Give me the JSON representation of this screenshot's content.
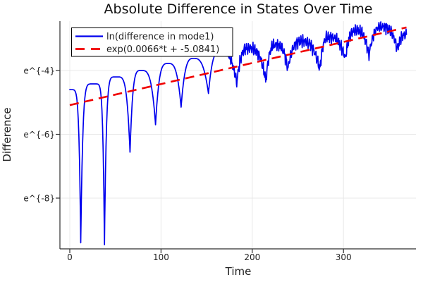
{
  "colors": {
    "background": "#ffffff",
    "grid": "#e8e8e8",
    "axis": "#2f2f2f",
    "tick_text": "#222222",
    "title_text": "#111111",
    "legend_border": "#000000",
    "legend_background": "#ffffff"
  },
  "chart_data": {
    "type": "line",
    "title": "Absolute Difference in States Over Time",
    "xlabel": "Time",
    "ylabel": "Difference",
    "grid": true,
    "legend_position": "top-left",
    "x_ticks": [
      0,
      100,
      200,
      300
    ],
    "x_tick_labels": [
      "0",
      "100",
      "200",
      "300"
    ],
    "y_tick_ln": [
      -4,
      -6,
      -8
    ],
    "y_tick_labels": [
      "e^{-4}",
      "e^{-6}",
      "e^{-8}"
    ],
    "xlim": [
      -10.8,
      381
    ],
    "ylim_ln": [
      -9.6,
      -2.45
    ],
    "series": [
      {
        "name": "ln(difference in mode1)",
        "color": "#0000ee",
        "style": "solid",
        "description": "log of absolute difference between states; periodic cusped oscillations rising along exponential trend, becoming noisy after t≈168",
        "keypoints": {
          "start": [
            0,
            -4.6
          ],
          "dips": [
            [
              12,
              -9.4
            ],
            [
              38,
              -9.46
            ],
            [
              66,
              -6.56
            ],
            [
              94,
              -5.7
            ],
            [
              122,
              -5.15
            ],
            [
              152,
              -4.72
            ],
            [
              183,
              -4.4
            ],
            [
              215,
              -4.33
            ],
            [
              239,
              -3.95
            ],
            [
              274,
              -3.97
            ],
            [
              302,
              -3.63
            ],
            [
              328,
              -3.52
            ],
            [
              359,
              -3.33
            ]
          ],
          "peaks": [
            [
              26.5,
              -4.42
            ],
            [
              52,
              -4.2
            ],
            [
              78.5,
              -4.0
            ],
            [
              108,
              -3.78
            ],
            [
              136,
              -3.62
            ],
            [
              165,
              -3.4
            ],
            [
              196,
              -3.3
            ],
            [
              226,
              -3.19
            ],
            [
              254,
              -3.08
            ],
            [
              284,
              -2.95
            ],
            [
              314,
              -2.75
            ],
            [
              342,
              -2.63
            ],
            [
              369,
              -2.88
            ]
          ]
        },
        "noise": {
          "start_t": 168,
          "amp": 1.0
        }
      },
      {
        "name": "exp(0.0066*t + -5.0841)",
        "color": "#f00000",
        "style": "dash",
        "fit": {
          "slope": 0.0066,
          "intercept": -5.0841
        },
        "t_range": [
          0,
          369
        ]
      }
    ]
  }
}
